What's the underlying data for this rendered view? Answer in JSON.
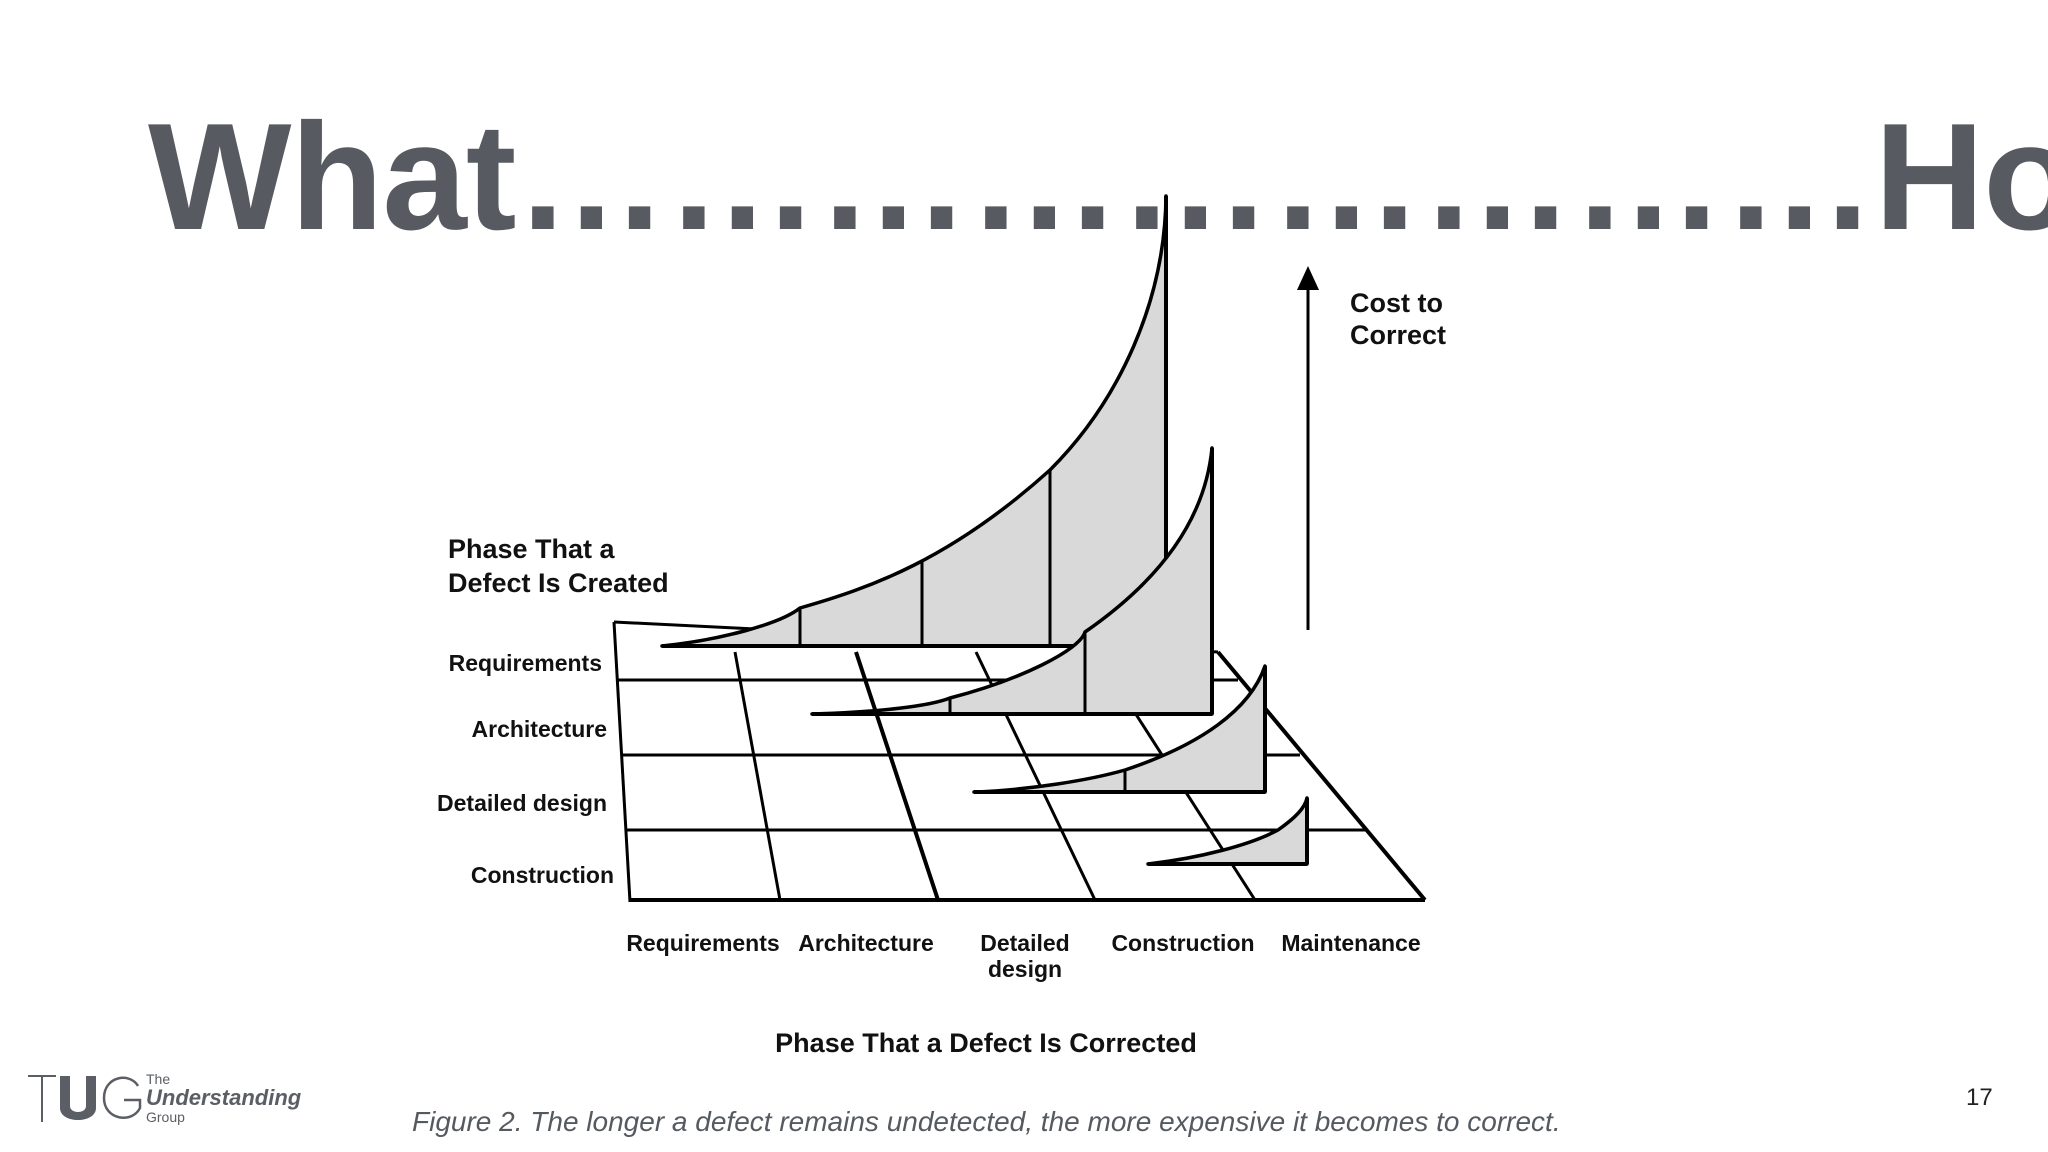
{
  "slide": {
    "title": "What………………………How",
    "page_number": "17",
    "caption": "Figure 2. The longer a defect remains undetected, the more expensive it becomes to correct."
  },
  "diagram": {
    "cost_axis_label_line1": "Cost to",
    "cost_axis_label_line2": "Correct",
    "created_axis_title_line1": "Phase That a",
    "created_axis_title_line2": "Defect Is Created",
    "corrected_axis_title": "Phase That a Defect Is Corrected",
    "created_phases": [
      "Requirements",
      "Architecture",
      "Detailed design",
      "Construction"
    ],
    "corrected_phases": [
      {
        "line1": "Requirements",
        "line2": ""
      },
      {
        "line1": "Architecture",
        "line2": ""
      },
      {
        "line1": "Detailed",
        "line2": "design"
      },
      {
        "line1": "Construction",
        "line2": ""
      },
      {
        "line1": "Maintenance",
        "line2": ""
      }
    ],
    "fill_color": "#d9d9d9",
    "line_color": "#000000"
  },
  "logo": {
    "the": "The",
    "understanding": "Understanding",
    "group": "Group",
    "mark": "TUG"
  },
  "colors": {
    "title": "#575b61",
    "caption": "#555a60"
  }
}
